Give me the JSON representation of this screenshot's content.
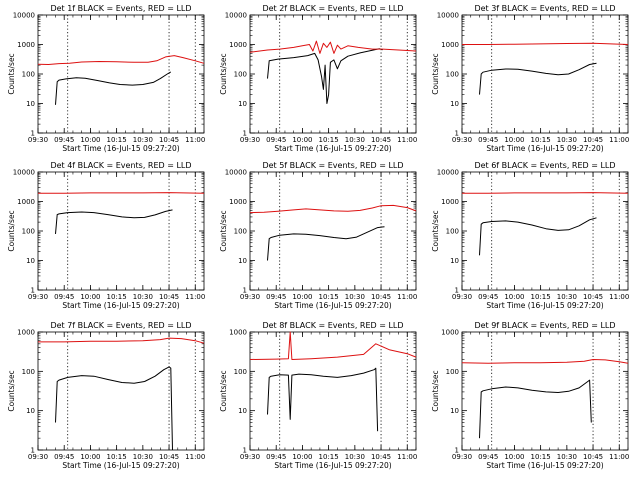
{
  "figure": {
    "xlabel": "Start Time (16-Jul-15 09:27:20)",
    "ylabel": "Counts/sec",
    "x_tick_labels": [
      "09:30",
      "09:45",
      "10:00",
      "10:15",
      "10:30",
      "10:45",
      "11:00"
    ],
    "y_tick_labels": [
      "1",
      "10",
      "100",
      "1000",
      "10000"
    ],
    "colors": {
      "events": "#000000",
      "lld": "#dd1111"
    }
  },
  "chart_data": [
    {
      "type": "line",
      "title": "Det 1f BLACK = Events, RED = LLD",
      "xlim": [
        "09:30",
        "11:05"
      ],
      "ylim": [
        1,
        10000
      ],
      "yscale": "log",
      "marker_times": [
        "09:47",
        "10:45",
        "11:00"
      ],
      "series": [
        {
          "name": "Events",
          "color": "#000000",
          "x": [
            "09:40",
            "09:41",
            "09:42",
            "09:46",
            "09:52",
            "09:57",
            "10:04",
            "10:11",
            "10:17",
            "10:24",
            "10:30",
            "10:36",
            "10:40",
            "10:44",
            "10:46"
          ],
          "y": [
            9,
            55,
            62,
            68,
            75,
            72,
            60,
            50,
            44,
            42,
            44,
            52,
            70,
            100,
            118
          ]
        },
        {
          "name": "LLD",
          "color": "#dd1111",
          "x": [
            "09:30",
            "09:36",
            "09:42",
            "09:48",
            "09:55",
            "10:05",
            "10:15",
            "10:25",
            "10:33",
            "10:38",
            "10:43",
            "10:48",
            "10:53",
            "11:00",
            "11:05"
          ],
          "y": [
            215,
            210,
            225,
            230,
            255,
            265,
            260,
            250,
            250,
            280,
            380,
            420,
            360,
            280,
            230
          ]
        }
      ]
    },
    {
      "type": "line",
      "title": "Det 2f BLACK = Events, RED = LLD",
      "xlim": [
        "09:30",
        "11:05"
      ],
      "ylim": [
        1,
        10000
      ],
      "yscale": "log",
      "marker_times": [
        "09:47",
        "10:45",
        "11:00"
      ],
      "series": [
        {
          "name": "Events",
          "color": "#000000",
          "x": [
            "09:40",
            "09:41",
            "09:46",
            "09:55",
            "10:03",
            "10:07",
            "10:09",
            "10:11",
            "10:12",
            "10:13",
            "10:14",
            "10:15",
            "10:16",
            "10:18",
            "10:20",
            "10:22",
            "10:26",
            "10:33",
            "10:40",
            "10:44",
            "10:46"
          ],
          "y": [
            70,
            280,
            320,
            360,
            420,
            500,
            300,
            80,
            30,
            200,
            10,
            20,
            250,
            300,
            150,
            280,
            400,
            520,
            640,
            720,
            660
          ]
        },
        {
          "name": "LLD",
          "color": "#dd1111",
          "x": [
            "09:30",
            "09:40",
            "09:47",
            "09:55",
            "10:00",
            "10:04",
            "10:06",
            "10:08",
            "10:10",
            "10:12",
            "10:14",
            "10:16",
            "10:18",
            "10:20",
            "10:22",
            "10:26",
            "10:32",
            "10:40",
            "10:46",
            "10:55",
            "11:05"
          ],
          "y": [
            550,
            650,
            700,
            800,
            900,
            1000,
            600,
            1300,
            500,
            1100,
            800,
            1200,
            500,
            950,
            700,
            900,
            800,
            700,
            700,
            650,
            600
          ]
        }
      ]
    },
    {
      "type": "line",
      "title": "Det 3f BLACK = Events, RED = LLD",
      "xlim": [
        "09:30",
        "11:05"
      ],
      "ylim": [
        1,
        10000
      ],
      "yscale": "log",
      "marker_times": [
        "09:47",
        "10:45",
        "11:00"
      ],
      "series": [
        {
          "name": "Events",
          "color": "#000000",
          "x": [
            "09:40",
            "09:41",
            "09:42",
            "09:47",
            "09:55",
            "10:02",
            "10:10",
            "10:18",
            "10:25",
            "10:31",
            "10:37",
            "10:43",
            "10:47"
          ],
          "y": [
            20,
            100,
            115,
            135,
            148,
            145,
            125,
            105,
            95,
            100,
            140,
            210,
            230
          ]
        },
        {
          "name": "LLD",
          "color": "#dd1111",
          "x": [
            "09:30",
            "09:45",
            "10:00",
            "10:15",
            "10:30",
            "10:45",
            "11:05"
          ],
          "y": [
            1000,
            1000,
            1020,
            1050,
            1080,
            1100,
            1000
          ]
        }
      ]
    },
    {
      "type": "line",
      "title": "Det 4f BLACK = Events, RED = LLD",
      "xlim": [
        "09:30",
        "11:05"
      ],
      "ylim": [
        1,
        10000
      ],
      "yscale": "log",
      "marker_times": [
        "09:47",
        "10:45",
        "11:00"
      ],
      "series": [
        {
          "name": "Events",
          "color": "#000000",
          "x": [
            "09:40",
            "09:41",
            "09:42",
            "09:47",
            "09:55",
            "10:02",
            "10:10",
            "10:18",
            "10:25",
            "10:31",
            "10:37",
            "10:43",
            "10:47"
          ],
          "y": [
            80,
            360,
            380,
            420,
            440,
            420,
            360,
            300,
            280,
            290,
            350,
            460,
            520
          ]
        },
        {
          "name": "LLD",
          "color": "#dd1111",
          "x": [
            "09:30",
            "09:45",
            "10:00",
            "10:15",
            "10:30",
            "10:45",
            "11:05"
          ],
          "y": [
            1900,
            1900,
            1950,
            1950,
            1950,
            2000,
            1900
          ]
        }
      ]
    },
    {
      "type": "line",
      "title": "Det 5f BLACK = Events, RED = LLD",
      "xlim": [
        "09:30",
        "11:05"
      ],
      "ylim": [
        1,
        10000
      ],
      "yscale": "log",
      "marker_times": [
        "09:47",
        "10:45",
        "11:00"
      ],
      "series": [
        {
          "name": "Events",
          "color": "#000000",
          "x": [
            "09:40",
            "09:41",
            "09:42",
            "09:47",
            "09:55",
            "10:02",
            "10:10",
            "10:18",
            "10:25",
            "10:31",
            "10:37",
            "10:43",
            "10:47"
          ],
          "y": [
            10,
            55,
            60,
            72,
            80,
            78,
            70,
            60,
            55,
            62,
            90,
            130,
            140
          ]
        },
        {
          "name": "LLD",
          "color": "#dd1111",
          "x": [
            "09:30",
            "09:38",
            "09:46",
            "09:55",
            "10:02",
            "10:10",
            "10:18",
            "10:26",
            "10:33",
            "10:40",
            "10:45",
            "10:52",
            "11:00",
            "11:05"
          ],
          "y": [
            420,
            430,
            470,
            520,
            560,
            520,
            480,
            470,
            500,
            600,
            720,
            740,
            620,
            480
          ]
        }
      ]
    },
    {
      "type": "line",
      "title": "Det 6f BLACK = Events, RED = LLD",
      "xlim": [
        "09:30",
        "11:05"
      ],
      "ylim": [
        1,
        10000
      ],
      "yscale": "log",
      "marker_times": [
        "09:47",
        "10:45",
        "11:00"
      ],
      "series": [
        {
          "name": "Events",
          "color": "#000000",
          "x": [
            "09:40",
            "09:41",
            "09:42",
            "09:47",
            "09:55",
            "10:02",
            "10:10",
            "10:18",
            "10:25",
            "10:31",
            "10:37",
            "10:43",
            "10:47"
          ],
          "y": [
            15,
            170,
            190,
            210,
            220,
            200,
            160,
            120,
            105,
            110,
            150,
            240,
            280
          ]
        },
        {
          "name": "LLD",
          "color": "#dd1111",
          "x": [
            "09:30",
            "09:45",
            "10:00",
            "10:15",
            "10:30",
            "10:45",
            "11:05"
          ],
          "y": [
            1900,
            1900,
            1950,
            1950,
            1950,
            2000,
            1900
          ]
        }
      ]
    },
    {
      "type": "line",
      "title": "Det 7f BLACK = Events, RED = LLD",
      "xlim": [
        "09:30",
        "11:05"
      ],
      "ylim": [
        1,
        1000
      ],
      "yscale": "log",
      "marker_times": [
        "09:47",
        "10:45",
        "11:00"
      ],
      "series": [
        {
          "name": "Events",
          "color": "#000000",
          "x": [
            "09:40",
            "09:41",
            "09:42",
            "09:47",
            "09:55",
            "10:02",
            "10:10",
            "10:18",
            "10:25",
            "10:31",
            "10:37",
            "10:42",
            "10:45",
            "10:46",
            "10:47"
          ],
          "y": [
            5,
            55,
            60,
            70,
            78,
            75,
            62,
            52,
            50,
            55,
            75,
            110,
            130,
            120,
            1
          ]
        },
        {
          "name": "LLD",
          "color": "#dd1111",
          "x": [
            "09:30",
            "09:45",
            "10:00",
            "10:15",
            "10:30",
            "10:40",
            "10:45",
            "10:52",
            "11:00",
            "11:05"
          ],
          "y": [
            560,
            560,
            580,
            580,
            600,
            640,
            700,
            680,
            600,
            520
          ]
        }
      ]
    },
    {
      "type": "line",
      "title": "Det 8f BLACK = Events, RED = LLD",
      "xlim": [
        "09:30",
        "11:05"
      ],
      "ylim": [
        1,
        1000
      ],
      "yscale": "log",
      "marker_times": [
        "09:47",
        "10:45",
        "11:00"
      ],
      "series": [
        {
          "name": "Events",
          "color": "#000000",
          "x": [
            "09:40",
            "09:41",
            "09:42",
            "09:47",
            "09:52",
            "09:53",
            "09:54",
            "09:58",
            "10:05",
            "10:12",
            "10:20",
            "10:28",
            "10:35",
            "10:41",
            "10:42",
            "10:43"
          ],
          "y": [
            8,
            70,
            75,
            82,
            80,
            6,
            80,
            85,
            82,
            75,
            70,
            78,
            90,
            110,
            120,
            3
          ]
        },
        {
          "name": "LLD",
          "color": "#dd1111",
          "x": [
            "09:30",
            "09:45",
            "09:52",
            "09:53",
            "09:54",
            "10:05",
            "10:20",
            "10:35",
            "10:42",
            "10:50",
            "11:00",
            "11:05"
          ],
          "y": [
            200,
            205,
            210,
            1000,
            200,
            210,
            230,
            270,
            500,
            350,
            280,
            230
          ]
        }
      ]
    },
    {
      "type": "line",
      "title": "Det 9f BLACK = Events, RED = LLD",
      "xlim": [
        "09:30",
        "11:05"
      ],
      "ylim": [
        1,
        1000
      ],
      "yscale": "log",
      "marker_times": [
        "09:47",
        "10:45",
        "11:00"
      ],
      "series": [
        {
          "name": "Events",
          "color": "#000000",
          "x": [
            "09:40",
            "09:41",
            "09:42",
            "09:47",
            "09:55",
            "10:02",
            "10:10",
            "10:18",
            "10:25",
            "10:31",
            "10:37",
            "10:42",
            "10:43",
            "10:44"
          ],
          "y": [
            2,
            30,
            32,
            36,
            40,
            38,
            33,
            30,
            29,
            31,
            38,
            55,
            60,
            5
          ]
        },
        {
          "name": "LLD",
          "color": "#dd1111",
          "x": [
            "09:30",
            "09:45",
            "10:00",
            "10:15",
            "10:30",
            "10:40",
            "10:45",
            "10:52",
            "11:00",
            "11:05"
          ],
          "y": [
            165,
            160,
            165,
            165,
            170,
            180,
            200,
            195,
            175,
            160
          ]
        }
      ]
    }
  ]
}
